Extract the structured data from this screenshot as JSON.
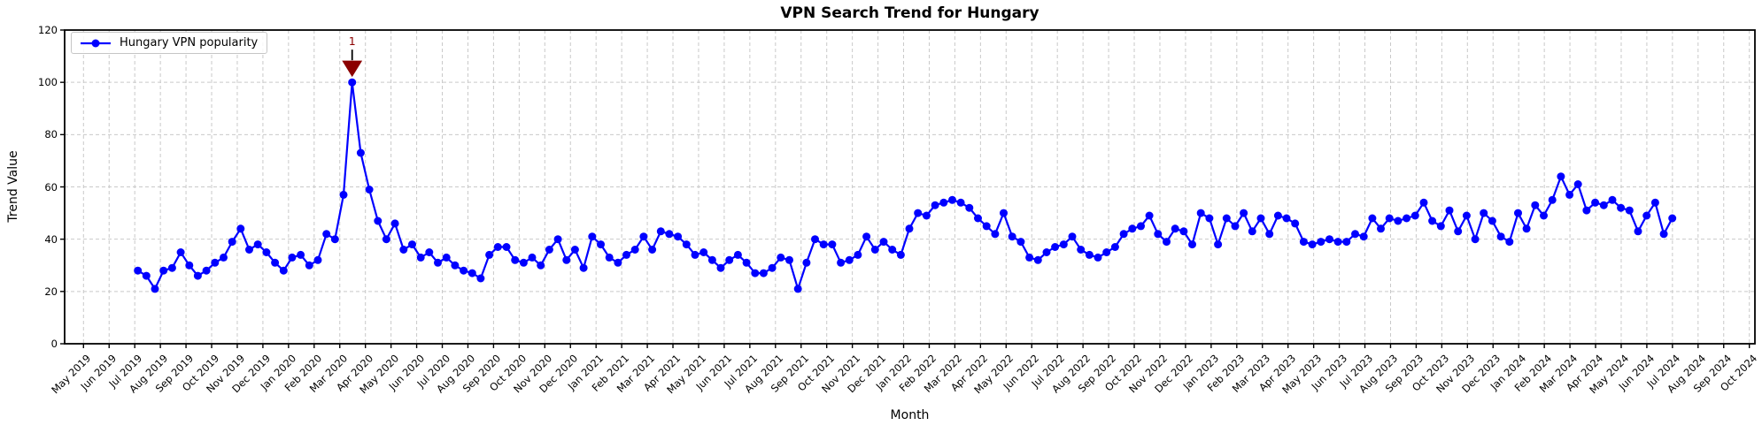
{
  "chart_data": {
    "type": "line",
    "title": "VPN Search Trend for Hungary",
    "xlabel": "Month",
    "ylabel": "Trend Value",
    "ylim": [
      0,
      120
    ],
    "yticks": [
      0,
      20,
      40,
      60,
      80,
      100,
      120
    ],
    "grid": true,
    "legend_position": "upper left",
    "x_tick_labels": [
      "May 2019",
      "Jun 2019",
      "Jul 2019",
      "Aug 2019",
      "Sep 2019",
      "Oct 2019",
      "Nov 2019",
      "Dec 2019",
      "Jan 2020",
      "Feb 2020",
      "Mar 2020",
      "Apr 2020",
      "May 2020",
      "Jun 2020",
      "Jul 2020",
      "Aug 2020",
      "Sep 2020",
      "Oct 2020",
      "Nov 2020",
      "Dec 2020",
      "Jan 2021",
      "Feb 2021",
      "Mar 2021",
      "Apr 2021",
      "May 2021",
      "Jun 2021",
      "Jul 2021",
      "Aug 2021",
      "Sep 2021",
      "Oct 2021",
      "Nov 2021",
      "Dec 2021",
      "Jan 2022",
      "Feb 2022",
      "Mar 2022",
      "Apr 2022",
      "May 2022",
      "Jun 2022",
      "Jul 2022",
      "Aug 2022",
      "Sep 2022",
      "Oct 2022",
      "Nov 2022",
      "Dec 2022",
      "Jan 2023",
      "Feb 2023",
      "Mar 2023",
      "Apr 2023",
      "May 2023",
      "Jun 2023",
      "Jul 2023",
      "Aug 2023",
      "Sep 2023",
      "Oct 2023",
      "Nov 2023",
      "Dec 2023",
      "Jan 2024",
      "Feb 2024",
      "Mar 2024",
      "Apr 2024",
      "May 2024",
      "Jun 2024",
      "Jul 2024",
      "Aug 2024",
      "Sep 2024",
      "Oct 2024"
    ],
    "series": [
      {
        "name": "Hungary VPN popularity",
        "x_start_month_offset": 2.12,
        "x_step_months": 0.3345,
        "values": [
          28,
          26,
          21,
          28,
          29,
          35,
          30,
          26,
          28,
          31,
          33,
          39,
          44,
          36,
          38,
          35,
          31,
          28,
          33,
          34,
          30,
          32,
          42,
          40,
          57,
          100,
          73,
          59,
          47,
          40,
          46,
          36,
          38,
          33,
          35,
          31,
          33,
          30,
          28,
          27,
          25,
          34,
          37,
          37,
          32,
          31,
          33,
          30,
          36,
          40,
          32,
          36,
          29,
          41,
          38,
          33,
          31,
          34,
          36,
          41,
          36,
          43,
          42,
          41,
          38,
          34,
          35,
          32,
          29,
          32,
          34,
          31,
          27,
          27,
          29,
          33,
          32,
          21,
          31,
          40,
          38,
          38,
          31,
          32,
          34,
          41,
          36,
          39,
          36,
          34,
          44,
          50,
          49,
          53,
          54,
          55,
          54,
          52,
          48,
          45,
          42,
          50,
          41,
          39,
          33,
          32,
          35,
          37,
          38,
          41,
          36,
          34,
          33,
          35,
          37,
          42,
          44,
          45,
          49,
          42,
          39,
          44,
          43,
          38,
          50,
          48,
          38,
          48,
          45,
          50,
          43,
          48,
          42,
          49,
          48,
          46,
          39,
          38,
          39,
          40,
          39,
          39,
          42,
          41,
          48,
          44,
          48,
          47,
          48,
          49,
          54,
          47,
          45,
          51,
          43,
          49,
          40,
          50,
          47,
          41,
          39,
          50,
          44,
          53,
          49,
          55,
          64,
          57,
          61,
          51,
          54,
          53,
          55,
          52,
          51,
          43,
          49,
          54,
          42,
          48
        ]
      }
    ],
    "annotations": [
      {
        "text": "1",
        "point_index": 25,
        "at_value": 100,
        "marker": "down-triangle",
        "color": "#8b0000"
      }
    ],
    "colors": {
      "line": "#0000ff",
      "marker": "#0000ff",
      "annotation": "#8b0000",
      "grid": "#c9c9c9",
      "spine": "#000000",
      "background": "#ffffff"
    }
  }
}
